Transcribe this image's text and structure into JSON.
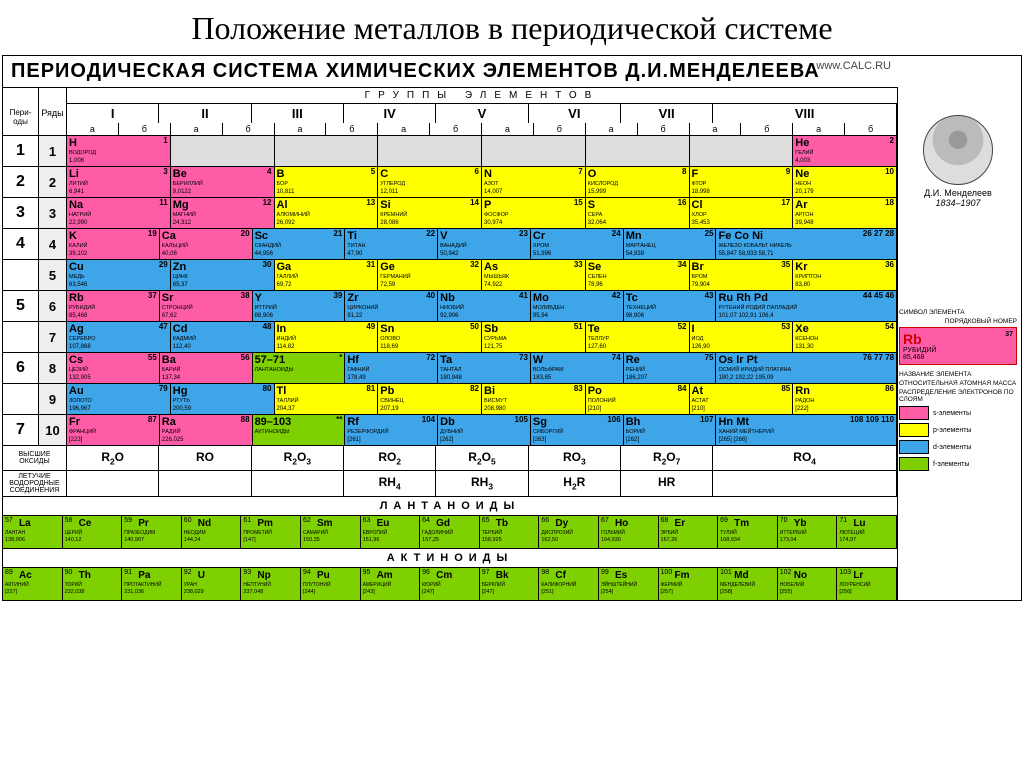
{
  "title": "Положение металлов в периодической системе",
  "table_title": "ПЕРИОДИЧЕСКАЯ СИСТЕМА ХИМИЧЕСКИХ ЭЛЕМЕНТОВ Д.И.МЕНДЕЛЕЕВА",
  "url": "www.CALC.RU",
  "labels": {
    "periods": "Пери-оды",
    "rows": "Ряды",
    "groups": "ГРУППЫ ЭЛЕМЕНТОВ",
    "oxides": "ВЫСШИЕ ОКСИДЫ",
    "hydrides": "ЛЕТУЧИЕ ВОДОРОДНЫЕ СОЕДИНЕНИЯ",
    "lanthanoids": "ЛАНТАНОИДЫ",
    "actinoids": "АКТИНОИДЫ"
  },
  "groups": [
    "I",
    "II",
    "III",
    "IV",
    "V",
    "VI",
    "VII",
    "VIII"
  ],
  "subgroups": [
    "а",
    "б",
    "а",
    "б",
    "а",
    "б",
    "а",
    "б",
    "а",
    "б",
    "а",
    "б",
    "а",
    "б",
    "а",
    "б"
  ],
  "colors": {
    "s": "#ff5ca8",
    "p": "#ffff00",
    "d": "#3da5e8",
    "f": "#7fd000",
    "gray": "#dddddd",
    "border": "#000000",
    "bg": "#ffffff"
  },
  "portrait": {
    "name": "Д.И. Менделеев",
    "years": "1834–1907"
  },
  "legend_labels": {
    "symbol": "СИМВОЛ ЭЛЕМЕНТА",
    "number": "ПОРЯДКОВЫЙ НОМЕР",
    "name": "НАЗВАНИЕ ЭЛЕМЕНТА",
    "mass": "ОТНОСИТЕЛЬНАЯ АТОМНАЯ МАССА",
    "layers": "РАСПРЕДЕЛЕНИЕ ЭЛЕКТРОНОВ ПО СЛОЯМ"
  },
  "legend_element": {
    "sym": "Rb",
    "num": "37",
    "name": "РУБИДИЙ",
    "mass": "85,468"
  },
  "legend_blocks": [
    {
      "color": "#ff5ca8",
      "label": "s-элементы"
    },
    {
      "color": "#ffff00",
      "label": "p-элементы"
    },
    {
      "color": "#3da5e8",
      "label": "d-элементы"
    },
    {
      "color": "#7fd000",
      "label": "f-элементы"
    }
  ],
  "oxides": [
    "R₂O",
    "RO",
    "R₂O₃",
    "RO₂",
    "R₂O₅",
    "RO₃",
    "R₂O₇",
    "RO₄"
  ],
  "hydrides": [
    "",
    "",
    "",
    "RH₄",
    "RH₃",
    "H₂R",
    "HR",
    ""
  ],
  "periods": [
    {
      "num": "1",
      "rows": [
        {
          "r": "1",
          "cells": [
            {
              "sym": "H",
              "num": "1",
              "name": "ВОДОРОД",
              "mass": "1,008",
              "block": "s"
            },
            {
              "block": "gray"
            },
            {
              "block": "gray"
            },
            {
              "block": "gray"
            },
            {
              "block": "gray"
            },
            {
              "block": "gray"
            },
            {
              "block": "gray"
            },
            {
              "sym": "He",
              "num": "2",
              "name": "ГЕЛИЙ",
              "mass": "4,003",
              "block": "s"
            }
          ]
        }
      ]
    },
    {
      "num": "2",
      "rows": [
        {
          "r": "2",
          "cells": [
            {
              "sym": "Li",
              "num": "3",
              "name": "ЛИТИЙ",
              "mass": "6,941",
              "block": "s"
            },
            {
              "sym": "Be",
              "num": "4",
              "name": "БЕРИЛЛИЙ",
              "mass": "9,0122",
              "block": "s"
            },
            {
              "sym": "B",
              "num": "5",
              "name": "БОР",
              "mass": "10,811",
              "block": "p"
            },
            {
              "sym": "C",
              "num": "6",
              "name": "УГЛЕРОД",
              "mass": "12,011",
              "block": "p"
            },
            {
              "sym": "N",
              "num": "7",
              "name": "АЗОТ",
              "mass": "14,007",
              "block": "p"
            },
            {
              "sym": "O",
              "num": "8",
              "name": "КИСЛОРОД",
              "mass": "15,999",
              "block": "p"
            },
            {
              "sym": "F",
              "num": "9",
              "name": "ФТОР",
              "mass": "18,998",
              "block": "p"
            },
            {
              "sym": "Ne",
              "num": "10",
              "name": "НЕОН",
              "mass": "20,179",
              "block": "p"
            }
          ]
        }
      ]
    },
    {
      "num": "3",
      "rows": [
        {
          "r": "3",
          "cells": [
            {
              "sym": "Na",
              "num": "11",
              "name": "НАТРИЙ",
              "mass": "22,990",
              "block": "s"
            },
            {
              "sym": "Mg",
              "num": "12",
              "name": "МАГНИЙ",
              "mass": "24,312",
              "block": "s"
            },
            {
              "sym": "Al",
              "num": "13",
              "name": "АЛЮМИНИЙ",
              "mass": "26,092",
              "block": "p"
            },
            {
              "sym": "Si",
              "num": "14",
              "name": "КРЕМНИЙ",
              "mass": "28,086",
              "block": "p"
            },
            {
              "sym": "P",
              "num": "15",
              "name": "ФОСФОР",
              "mass": "30,974",
              "block": "p"
            },
            {
              "sym": "S",
              "num": "16",
              "name": "СЕРА",
              "mass": "32,064",
              "block": "p"
            },
            {
              "sym": "Cl",
              "num": "17",
              "name": "ХЛОР",
              "mass": "35,453",
              "block": "p"
            },
            {
              "sym": "Ar",
              "num": "18",
              "name": "АРГОН",
              "mass": "39,948",
              "block": "p"
            }
          ]
        }
      ]
    },
    {
      "num": "4",
      "rows": [
        {
          "r": "4",
          "cells": [
            {
              "sym": "K",
              "num": "19",
              "name": "КАЛИЙ",
              "mass": "39,102",
              "block": "s"
            },
            {
              "sym": "Ca",
              "num": "20",
              "name": "КАЛЬЦИЙ",
              "mass": "40,08",
              "block": "s"
            },
            {
              "sym": "Sc",
              "num": "21",
              "name": "СКАНДИЙ",
              "mass": "44,956",
              "block": "d"
            },
            {
              "sym": "Ti",
              "num": "22",
              "name": "ТИТАН",
              "mass": "47,90",
              "block": "d"
            },
            {
              "sym": "V",
              "num": "23",
              "name": "ВАНАДИЙ",
              "mass": "50,942",
              "block": "d"
            },
            {
              "sym": "Cr",
              "num": "24",
              "name": "ХРОМ",
              "mass": "51,996",
              "block": "d"
            },
            {
              "sym": "Mn",
              "num": "25",
              "name": "МАРГАНЕЦ",
              "mass": "54,938",
              "block": "d"
            },
            {
              "sym": "Fe Co Ni",
              "num": "26 27 28",
              "name": "ЖЕЛЕЗО КОБАЛЬТ НИКЕЛЬ",
              "mass": "55,847 58,933 58,71",
              "block": "d",
              "wide": true
            }
          ]
        },
        {
          "r": "5",
          "cells": [
            {
              "sym": "Cu",
              "num": "29",
              "name": "МЕДЬ",
              "mass": "63,546",
              "block": "d"
            },
            {
              "sym": "Zn",
              "num": "30",
              "name": "ЦИНК",
              "mass": "65,37",
              "block": "d"
            },
            {
              "sym": "Ga",
              "num": "31",
              "name": "ГАЛЛИЙ",
              "mass": "69,72",
              "block": "p"
            },
            {
              "sym": "Ge",
              "num": "32",
              "name": "ГЕРМАНИЙ",
              "mass": "72,59",
              "block": "p"
            },
            {
              "sym": "As",
              "num": "33",
              "name": "МЫШЬЯК",
              "mass": "74,922",
              "block": "p"
            },
            {
              "sym": "Se",
              "num": "34",
              "name": "СЕЛЕН",
              "mass": "78,96",
              "block": "p"
            },
            {
              "sym": "Br",
              "num": "35",
              "name": "БРОМ",
              "mass": "79,904",
              "block": "p"
            },
            {
              "sym": "Kr",
              "num": "36",
              "name": "КРИПТОН",
              "mass": "83,80",
              "block": "p"
            }
          ]
        }
      ]
    },
    {
      "num": "5",
      "rows": [
        {
          "r": "6",
          "cells": [
            {
              "sym": "Rb",
              "num": "37",
              "name": "РУБИДИЙ",
              "mass": "85,468",
              "block": "s"
            },
            {
              "sym": "Sr",
              "num": "38",
              "name": "СТРОНЦИЙ",
              "mass": "87,62",
              "block": "s"
            },
            {
              "sym": "Y",
              "num": "39",
              "name": "ИТТРИЙ",
              "mass": "88,906",
              "block": "d"
            },
            {
              "sym": "Zr",
              "num": "40",
              "name": "ЦИРКОНИЙ",
              "mass": "91,22",
              "block": "d"
            },
            {
              "sym": "Nb",
              "num": "41",
              "name": "НИОБИЙ",
              "mass": "92,906",
              "block": "d"
            },
            {
              "sym": "Mo",
              "num": "42",
              "name": "МОЛИБДЕН",
              "mass": "95,94",
              "block": "d"
            },
            {
              "sym": "Tc",
              "num": "43",
              "name": "ТЕХНЕЦИЙ",
              "mass": "98,906",
              "block": "d"
            },
            {
              "sym": "Ru Rh Pd",
              "num": "44 45 46",
              "name": "РУТЕНИЙ РОДИЙ ПАЛЛАДИЙ",
              "mass": "101,07 102,91 106,4",
              "block": "d",
              "wide": true
            }
          ]
        },
        {
          "r": "7",
          "cells": [
            {
              "sym": "Ag",
              "num": "47",
              "name": "СЕРЕБРО",
              "mass": "107,868",
              "block": "d"
            },
            {
              "sym": "Cd",
              "num": "48",
              "name": "КАДМИЙ",
              "mass": "112,40",
              "block": "d"
            },
            {
              "sym": "In",
              "num": "49",
              "name": "ИНДИЙ",
              "mass": "114,82",
              "block": "p"
            },
            {
              "sym": "Sn",
              "num": "50",
              "name": "ОЛОВО",
              "mass": "118,69",
              "block": "p"
            },
            {
              "sym": "Sb",
              "num": "51",
              "name": "СУРЬМА",
              "mass": "121,75",
              "block": "p"
            },
            {
              "sym": "Te",
              "num": "52",
              "name": "ТЕЛЛУР",
              "mass": "127,60",
              "block": "p"
            },
            {
              "sym": "I",
              "num": "53",
              "name": "ИОД",
              "mass": "126,90",
              "block": "p"
            },
            {
              "sym": "Xe",
              "num": "54",
              "name": "КСЕНОН",
              "mass": "131,30",
              "block": "p"
            }
          ]
        }
      ]
    },
    {
      "num": "6",
      "rows": [
        {
          "r": "8",
          "cells": [
            {
              "sym": "Cs",
              "num": "55",
              "name": "ЦЕЗИЙ",
              "mass": "132,905",
              "block": "s"
            },
            {
              "sym": "Ba",
              "num": "56",
              "name": "БАРИЙ",
              "mass": "137,34",
              "block": "s"
            },
            {
              "sym": "57–71",
              "num": "*",
              "name": "ЛАНТАНОИДЫ",
              "mass": "",
              "block": "f"
            },
            {
              "sym": "Hf",
              "num": "72",
              "name": "ГАФНИЙ",
              "mass": "178,49",
              "block": "d"
            },
            {
              "sym": "Ta",
              "num": "73",
              "name": "ТАНТАЛ",
              "mass": "180,948",
              "block": "d"
            },
            {
              "sym": "W",
              "num": "74",
              "name": "ВОЛЬФРАМ",
              "mass": "183,85",
              "block": "d"
            },
            {
              "sym": "Re",
              "num": "75",
              "name": "РЕНИЙ",
              "mass": "186,207",
              "block": "d"
            },
            {
              "sym": "Os Ir Pt",
              "num": "76 77 78",
              "name": "ОСМИЙ ИРИДИЙ ПЛАТИНА",
              "mass": "190,2 192,22 195,09",
              "block": "d",
              "wide": true
            }
          ]
        },
        {
          "r": "9",
          "cells": [
            {
              "sym": "Au",
              "num": "79",
              "name": "ЗОЛОТО",
              "mass": "196,967",
              "block": "d"
            },
            {
              "sym": "Hg",
              "num": "80",
              "name": "РТУТЬ",
              "mass": "200,59",
              "block": "d"
            },
            {
              "sym": "Tl",
              "num": "81",
              "name": "ТАЛЛИЙ",
              "mass": "204,37",
              "block": "p"
            },
            {
              "sym": "Pb",
              "num": "82",
              "name": "СВИНЕЦ",
              "mass": "207,19",
              "block": "p"
            },
            {
              "sym": "Bi",
              "num": "83",
              "name": "ВИСМУТ",
              "mass": "208,980",
              "block": "p"
            },
            {
              "sym": "Po",
              "num": "84",
              "name": "ПОЛОНИЙ",
              "mass": "[210]",
              "block": "p"
            },
            {
              "sym": "At",
              "num": "85",
              "name": "АСТАТ",
              "mass": "[210]",
              "block": "p"
            },
            {
              "sym": "Rn",
              "num": "86",
              "name": "РАДОН",
              "mass": "[222]",
              "block": "p"
            }
          ]
        }
      ]
    },
    {
      "num": "7",
      "rows": [
        {
          "r": "10",
          "cells": [
            {
              "sym": "Fr",
              "num": "87",
              "name": "ФРАНЦИЙ",
              "mass": "[223]",
              "block": "s"
            },
            {
              "sym": "Ra",
              "num": "88",
              "name": "РАДИЙ",
              "mass": "226,025",
              "block": "s"
            },
            {
              "sym": "89–103",
              "num": "**",
              "name": "АКТИНОИДЫ",
              "mass": "",
              "block": "f"
            },
            {
              "sym": "Rf",
              "num": "104",
              "name": "РЕЗЕРФОРДИЙ",
              "mass": "[261]",
              "block": "d"
            },
            {
              "sym": "Db",
              "num": "105",
              "name": "ДУБНИЙ",
              "mass": "[262]",
              "block": "d"
            },
            {
              "sym": "Sg",
              "num": "106",
              "name": "СИБОРГИЙ",
              "mass": "[263]",
              "block": "d"
            },
            {
              "sym": "Bh",
              "num": "107",
              "name": "БОРИЙ",
              "mass": "[262]",
              "block": "d"
            },
            {
              "sym": "Hn Mt",
              "num": "108 109 110",
              "name": "ХАНИЙ МЕЙТНЕРИЙ",
              "mass": "[265] [266]",
              "block": "d",
              "wide": true
            }
          ]
        }
      ]
    }
  ],
  "lanthanoids": [
    {
      "sym": "La",
      "num": "57",
      "name": "ЛАНТАН",
      "mass": "138,906"
    },
    {
      "sym": "Ce",
      "num": "58",
      "name": "ЦЕРИЙ",
      "mass": "140,12"
    },
    {
      "sym": "Pr",
      "num": "59",
      "name": "ПРАЗЕОДИМ",
      "mass": "140,907"
    },
    {
      "sym": "Nd",
      "num": "60",
      "name": "НЕОДИМ",
      "mass": "144,24"
    },
    {
      "sym": "Pm",
      "num": "61",
      "name": "ПРОМЕТИЙ",
      "mass": "[147]"
    },
    {
      "sym": "Sm",
      "num": "62",
      "name": "САМАРИЙ",
      "mass": "150,35"
    },
    {
      "sym": "Eu",
      "num": "63",
      "name": "ЕВРОПИЙ",
      "mass": "151,96"
    },
    {
      "sym": "Gd",
      "num": "64",
      "name": "ГАДОЛИНИЙ",
      "mass": "157,25"
    },
    {
      "sym": "Tb",
      "num": "65",
      "name": "ТЕРБИЙ",
      "mass": "158,925"
    },
    {
      "sym": "Dy",
      "num": "66",
      "name": "ДИСПРОЗИЙ",
      "mass": "162,50"
    },
    {
      "sym": "Ho",
      "num": "67",
      "name": "ГОЛЬМИЙ",
      "mass": "164,930"
    },
    {
      "sym": "Er",
      "num": "68",
      "name": "ЭРБИЙ",
      "mass": "167,26"
    },
    {
      "sym": "Tm",
      "num": "69",
      "name": "ТУЛИЙ",
      "mass": "168,934"
    },
    {
      "sym": "Yb",
      "num": "70",
      "name": "ИТТЕРБИЙ",
      "mass": "173,04"
    },
    {
      "sym": "Lu",
      "num": "71",
      "name": "ЛЮТЕЦИЙ",
      "mass": "174,97"
    }
  ],
  "actinoids": [
    {
      "sym": "Ac",
      "num": "89",
      "name": "АКТИНИЙ",
      "mass": "[227]"
    },
    {
      "sym": "Th",
      "num": "90",
      "name": "ТОРИЙ",
      "mass": "232,038"
    },
    {
      "sym": "Pa",
      "num": "91",
      "name": "ПРОТАКТИНИЙ",
      "mass": "231,036"
    },
    {
      "sym": "U",
      "num": "92",
      "name": "УРАН",
      "mass": "238,029"
    },
    {
      "sym": "Np",
      "num": "93",
      "name": "НЕПТУНИЙ",
      "mass": "237,048"
    },
    {
      "sym": "Pu",
      "num": "94",
      "name": "ПЛУТОНИЙ",
      "mass": "[244]"
    },
    {
      "sym": "Am",
      "num": "95",
      "name": "АМЕРИЦИЙ",
      "mass": "[243]"
    },
    {
      "sym": "Cm",
      "num": "96",
      "name": "КЮРИЙ",
      "mass": "[247]"
    },
    {
      "sym": "Bk",
      "num": "97",
      "name": "БЕРКЛИЙ",
      "mass": "[247]"
    },
    {
      "sym": "Cf",
      "num": "98",
      "name": "КАЛИФОРНИЙ",
      "mass": "[251]"
    },
    {
      "sym": "Es",
      "num": "99",
      "name": "ЭЙНШТЕЙНИЙ",
      "mass": "[254]"
    },
    {
      "sym": "Fm",
      "num": "100",
      "name": "ФЕРМИЙ",
      "mass": "[257]"
    },
    {
      "sym": "Md",
      "num": "101",
      "name": "МЕНДЕЛЕВИЙ",
      "mass": "[258]"
    },
    {
      "sym": "No",
      "num": "102",
      "name": "НОБЕЛИЙ",
      "mass": "[255]"
    },
    {
      "sym": "Lr",
      "num": "103",
      "name": "ЛОУРЕНСИЙ",
      "mass": "[256]"
    }
  ]
}
